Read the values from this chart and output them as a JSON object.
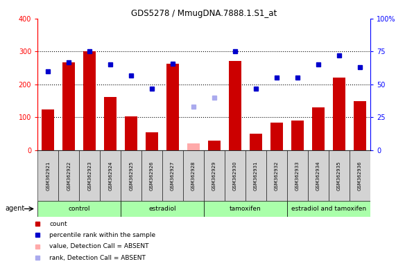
{
  "title": "GDS5278 / MmugDNA.7888.1.S1_at",
  "samples": [
    "GSM362921",
    "GSM362922",
    "GSM362923",
    "GSM362924",
    "GSM362925",
    "GSM362926",
    "GSM362927",
    "GSM362928",
    "GSM362929",
    "GSM362930",
    "GSM362931",
    "GSM362932",
    "GSM362933",
    "GSM362934",
    "GSM362935",
    "GSM362936"
  ],
  "bar_values": [
    125,
    268,
    300,
    162,
    103,
    55,
    262,
    null,
    30,
    272,
    50,
    85,
    90,
    130,
    220,
    150
  ],
  "bar_absent": [
    null,
    null,
    null,
    null,
    null,
    null,
    null,
    22,
    null,
    null,
    null,
    null,
    null,
    null,
    null,
    null
  ],
  "rank_values": [
    60,
    67,
    75,
    65,
    57,
    47,
    66,
    null,
    null,
    75,
    47,
    55,
    55,
    65,
    72,
    63
  ],
  "rank_absent": [
    null,
    null,
    null,
    null,
    null,
    null,
    null,
    33,
    40,
    null,
    null,
    null,
    null,
    null,
    null,
    null
  ],
  "group_labels": [
    "control",
    "estradiol",
    "tamoxifen",
    "estradiol and tamoxifen"
  ],
  "group_ranges": [
    [
      0,
      3
    ],
    [
      4,
      7
    ],
    [
      8,
      11
    ],
    [
      12,
      15
    ]
  ],
  "group_color": "#aaffaa",
  "ylim_left": [
    0,
    400
  ],
  "ylim_right": [
    0,
    100
  ],
  "left_yticks": [
    0,
    100,
    200,
    300,
    400
  ],
  "right_yticks": [
    0,
    25,
    50,
    75,
    100
  ],
  "right_yticklabels": [
    "0",
    "25",
    "50",
    "75",
    "100%"
  ],
  "bar_color": "#cc0000",
  "bar_absent_color": "#ffaaaa",
  "rank_color": "#0000cc",
  "rank_absent_color": "#aaaaee",
  "background_color": "#ffffff",
  "grid_color": "black",
  "grid_linestyle": "dotted",
  "grid_linewidth": 0.8
}
